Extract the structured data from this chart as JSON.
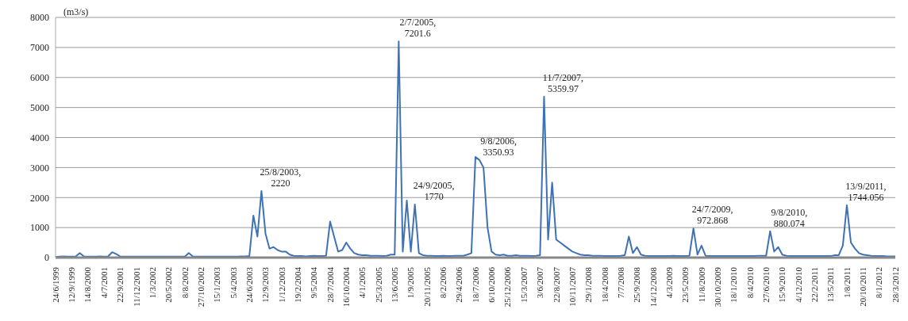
{
  "chart_data": {
    "type": "line",
    "ylabel": "(m3/s)",
    "ylim": [
      0,
      8000
    ],
    "yticks": [
      0,
      1000,
      2000,
      3000,
      4000,
      5000,
      6000,
      7000,
      8000
    ],
    "grid": "y",
    "legend": false,
    "marker": "none",
    "line_style": "solid",
    "categories": [
      "24/6/1999",
      null,
      null,
      null,
      "12/9/1999",
      null,
      null,
      null,
      "14/8/2000",
      null,
      null,
      null,
      "4/7/2001",
      null,
      null,
      null,
      "22/9/2001",
      null,
      null,
      null,
      "11/12/2001",
      null,
      null,
      null,
      "1/3/2002",
      null,
      null,
      null,
      "20/5/2002",
      null,
      null,
      null,
      "8/8/2002",
      null,
      null,
      null,
      "27/10/2002",
      null,
      null,
      null,
      "15/1/2003",
      null,
      null,
      null,
      "5/4/2003",
      null,
      null,
      null,
      "24/6/2003",
      null,
      null,
      null,
      "12/9/2003",
      null,
      null,
      null,
      "1/12/2003",
      null,
      null,
      null,
      "19/2/2004",
      null,
      null,
      null,
      "9/5/2004",
      null,
      null,
      null,
      "28/7/2004",
      null,
      null,
      null,
      "16/10/2004",
      null,
      null,
      null,
      "4/1/2005",
      null,
      null,
      null,
      "25/3/2005",
      null,
      null,
      null,
      "13/6/2005",
      null,
      null,
      null,
      "1/9/2005",
      null,
      null,
      null,
      "20/11/2005",
      null,
      null,
      null,
      "8/2/2006",
      null,
      null,
      null,
      "29/4/2006",
      null,
      null,
      null,
      "18/7/2006",
      null,
      null,
      null,
      "6/10/2006",
      null,
      null,
      null,
      "25/12/2006",
      null,
      null,
      null,
      "15/3/2007",
      null,
      null,
      null,
      "3/6/2007",
      null,
      null,
      null,
      "22/8/2007",
      null,
      null,
      null,
      "10/11/2007",
      null,
      null,
      null,
      "29/1/2008",
      null,
      null,
      null,
      "18/4/2008",
      null,
      null,
      null,
      "7/7/2008",
      null,
      null,
      null,
      "25/9/2008",
      null,
      null,
      null,
      "14/12/2008",
      null,
      null,
      null,
      "4/3/2009",
      null,
      null,
      null,
      "23/5/2009",
      null,
      null,
      null,
      "11/8/2009",
      null,
      null,
      null,
      "30/10/2009",
      null,
      null,
      null,
      "18/1/2010",
      null,
      null,
      null,
      "8/4/2010",
      null,
      null,
      null,
      "27/6/2010",
      null,
      null,
      null,
      "15/9/2010",
      null,
      null,
      null,
      "4/12/2010",
      null,
      null,
      null,
      "22/2/2011",
      null,
      null,
      null,
      "13/5/2011",
      null,
      null,
      null,
      "1/8/2011",
      null,
      null,
      null,
      "20/10/2011",
      null,
      null,
      null,
      "8/1/2012",
      null,
      null,
      null,
      "28/3/2012"
    ],
    "series": [
      {
        "color": "#3f72b5",
        "values": [
          20,
          30,
          40,
          30,
          30,
          40,
          150,
          40,
          30,
          30,
          30,
          40,
          30,
          40,
          180,
          120,
          40,
          30,
          30,
          30,
          30,
          30,
          30,
          30,
          30,
          30,
          30,
          30,
          30,
          30,
          30,
          30,
          30,
          150,
          40,
          30,
          30,
          30,
          30,
          30,
          30,
          30,
          30,
          30,
          30,
          30,
          40,
          40,
          50,
          1400,
          700,
          2220,
          800,
          300,
          350,
          250,
          200,
          200,
          100,
          60,
          50,
          50,
          40,
          50,
          60,
          50,
          50,
          60,
          1200,
          700,
          200,
          250,
          500,
          300,
          150,
          100,
          80,
          80,
          60,
          60,
          60,
          50,
          60,
          100,
          100,
          7201.6,
          200,
          1900,
          200,
          1770,
          150,
          80,
          60,
          60,
          50,
          50,
          60,
          50,
          50,
          60,
          60,
          60,
          100,
          150,
          3350.93,
          3250,
          3000,
          1000,
          200,
          100,
          80,
          100,
          60,
          60,
          80,
          60,
          60,
          60,
          50,
          60,
          80,
          5359.97,
          600,
          2500,
          600,
          500,
          400,
          300,
          200,
          150,
          100,
          80,
          80,
          60,
          60,
          60,
          50,
          50,
          50,
          50,
          60,
          80,
          700,
          150,
          350,
          100,
          60,
          50,
          50,
          50,
          50,
          50,
          50,
          60,
          50,
          50,
          50,
          60,
          972.868,
          100,
          400,
          60,
          50,
          50,
          50,
          50,
          50,
          50,
          50,
          50,
          50,
          50,
          50,
          50,
          60,
          60,
          60,
          880.074,
          200,
          350,
          100,
          60,
          50,
          50,
          50,
          50,
          50,
          50,
          50,
          50,
          50,
          50,
          50,
          80,
          80,
          400,
          1744.056,
          500,
          300,
          150,
          100,
          80,
          60,
          50,
          50,
          50,
          40,
          40,
          40
        ],
        "value_labels": [
          null,
          null,
          null,
          null,
          null,
          null,
          null,
          null,
          null,
          null,
          null,
          null,
          null,
          null,
          null,
          null,
          null,
          null,
          null,
          null,
          null,
          null,
          null,
          null,
          null,
          null,
          null,
          null,
          null,
          null,
          null,
          null,
          null,
          null,
          null,
          null,
          null,
          null,
          null,
          null,
          null,
          null,
          null,
          null,
          null,
          null,
          null,
          null,
          null,
          null,
          null,
          "25/8/2003, 2220",
          null,
          null,
          null,
          null,
          null,
          null,
          null,
          null,
          null,
          null,
          null,
          null,
          null,
          null,
          null,
          null,
          null,
          null,
          null,
          null,
          null,
          null,
          null,
          null,
          null,
          null,
          null,
          null,
          null,
          null,
          null,
          null,
          null,
          "2/7/2005, 7201.6",
          null,
          null,
          null,
          "24/9/2005, 1770",
          null,
          null,
          null,
          null,
          null,
          null,
          null,
          null,
          null,
          null,
          null,
          null,
          null,
          null,
          null,
          "9/8/2006, 3350.93",
          null,
          null,
          null,
          null,
          null,
          null,
          null,
          null,
          null,
          null,
          null,
          null,
          null,
          null,
          null,
          "11/7/2007, 5359.97",
          null,
          null,
          null,
          null,
          null,
          null,
          null,
          null,
          null,
          null,
          null,
          null,
          null,
          null,
          null,
          null,
          null,
          null,
          null,
          null,
          null,
          null,
          null,
          null,
          null,
          null,
          null,
          null,
          null,
          null,
          null,
          null,
          null,
          null,
          null,
          null,
          "24/7/2009, 972.868",
          null,
          null,
          null,
          null,
          null,
          null,
          null,
          null,
          null,
          null,
          null,
          null,
          null,
          null,
          null,
          null,
          null,
          null,
          "9/8/2010, 880.074",
          null,
          null,
          null,
          null,
          null,
          null,
          null,
          null,
          null,
          null,
          null,
          null,
          null,
          null,
          null,
          null,
          null,
          null,
          "13/9/2011, 1744.056",
          null,
          null,
          null,
          null,
          null,
          null,
          null,
          null,
          null,
          null,
          null,
          null
        ]
      }
    ]
  }
}
